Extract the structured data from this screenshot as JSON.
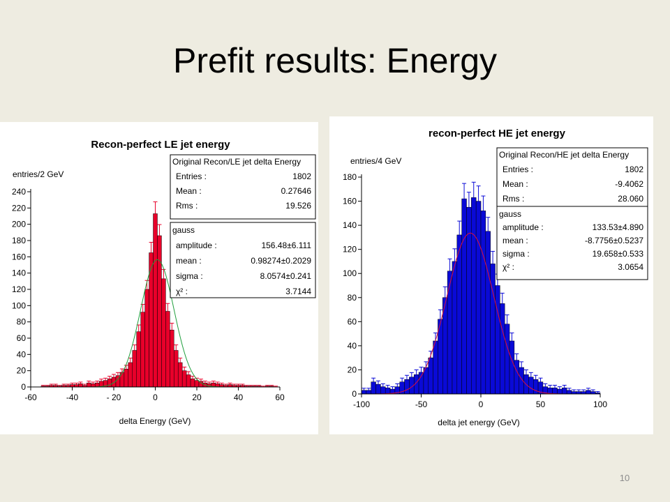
{
  "slide": {
    "title": "Prefit results: Energy",
    "page_number": "10"
  },
  "chart_data": [
    {
      "type": "bar",
      "title": "Recon-perfect LE jet energy",
      "xlabel": "delta Energy (GeV)",
      "ylabel": "entries/2 GeV",
      "xlim": [
        -60,
        60
      ],
      "ylim": [
        0,
        240
      ],
      "xticks": [
        -60,
        -40,
        -20,
        0,
        20,
        40,
        60
      ],
      "xtick_labels": [
        "-60",
        "-40",
        "- 20",
        "0",
        "20",
        "40",
        "60"
      ],
      "yticks": [
        0,
        20,
        40,
        60,
        80,
        100,
        120,
        140,
        160,
        180,
        200,
        220,
        240
      ],
      "bin_width": 2,
      "bar_color": "#e8002a",
      "fit_color": "#1f9e3c",
      "x": [
        -54,
        -52,
        -50,
        -48,
        -46,
        -44,
        -42,
        -40,
        -38,
        -36,
        -34,
        -32,
        -30,
        -28,
        -26,
        -24,
        -22,
        -20,
        -18,
        -16,
        -14,
        -12,
        -10,
        -8,
        -6,
        -4,
        -2,
        0,
        2,
        4,
        6,
        8,
        10,
        12,
        14,
        16,
        18,
        20,
        22,
        24,
        26,
        28,
        30,
        32,
        34,
        36,
        38,
        40,
        42,
        44,
        46,
        48,
        50,
        52,
        54,
        56,
        58
      ],
      "values": [
        1,
        1,
        2,
        2,
        1,
        2,
        2,
        3,
        3,
        4,
        2,
        5,
        4,
        5,
        7,
        8,
        10,
        12,
        14,
        18,
        22,
        30,
        45,
        68,
        92,
        120,
        165,
        213,
        186,
        133,
        93,
        70,
        45,
        30,
        20,
        15,
        10,
        8,
        7,
        5,
        4,
        5,
        4,
        3,
        2,
        3,
        2,
        2,
        2,
        1,
        1,
        1,
        1,
        0,
        1,
        1,
        0
      ],
      "fit": {
        "amplitude": 156.48,
        "mean": 0.98274,
        "sigma": 8.0574
      },
      "stats_box": {
        "title": "Original Recon/LE jet delta Energy",
        "rows": [
          {
            "label": "Entries :",
            "value": "1802"
          },
          {
            "label": "Mean :",
            "value": "0.27646"
          },
          {
            "label": "Rms :",
            "value": "19.526"
          }
        ]
      },
      "fit_box": {
        "title": "gauss",
        "rows": [
          {
            "label": "amplitude :",
            "value": "156.48±6.111"
          },
          {
            "label": "mean :",
            "value": "0.98274±0.2029"
          },
          {
            "label": "sigma :",
            "value": "8.0574±0.241"
          },
          {
            "label": "χ² :",
            "value": "3.7144"
          }
        ]
      }
    },
    {
      "type": "bar",
      "title": "recon-perfect HE jet energy",
      "xlabel": "delta jet energy (GeV)",
      "ylabel": "entries/4 GeV",
      "xlim": [
        -100,
        100
      ],
      "ylim": [
        0,
        180
      ],
      "xticks": [
        -100,
        -50,
        0,
        50,
        100
      ],
      "xtick_labels": [
        "-100",
        "-50",
        "0",
        "50",
        "100"
      ],
      "yticks": [
        0,
        20,
        40,
        60,
        80,
        100,
        120,
        140,
        160,
        180
      ],
      "bin_width": 4,
      "bar_color": "#0a0ad6",
      "fit_color": "#e0103a",
      "x": [
        -98,
        -94,
        -90,
        -86,
        -82,
        -78,
        -74,
        -70,
        -66,
        -62,
        -58,
        -54,
        -50,
        -46,
        -42,
        -38,
        -34,
        -30,
        -26,
        -22,
        -18,
        -14,
        -10,
        -6,
        -2,
        2,
        6,
        10,
        14,
        18,
        22,
        26,
        30,
        34,
        38,
        42,
        46,
        50,
        54,
        58,
        62,
        66,
        70,
        74,
        78,
        82,
        86,
        90,
        94,
        98
      ],
      "values": [
        3,
        3,
        10,
        8,
        6,
        5,
        4,
        6,
        10,
        12,
        14,
        16,
        18,
        22,
        30,
        44,
        62,
        80,
        102,
        110,
        132,
        162,
        155,
        163,
        160,
        152,
        135,
        108,
        90,
        75,
        58,
        44,
        28,
        22,
        16,
        14,
        12,
        10,
        6,
        5,
        5,
        4,
        5,
        3,
        2,
        2,
        2,
        3,
        2,
        1
      ],
      "fit": {
        "amplitude": 133.53,
        "mean": -8.7756,
        "sigma": 19.658
      },
      "stats_box": {
        "title": "Original Recon/HE jet delta Energy",
        "rows": [
          {
            "label": "Entries :",
            "value": "1802"
          },
          {
            "label": "Mean :",
            "value": "-9.4062"
          },
          {
            "label": "Rms :",
            "value": "28.060"
          }
        ]
      },
      "fit_box": {
        "title": "gauss",
        "rows": [
          {
            "label": "amplitude :",
            "value": "133.53±4.890"
          },
          {
            "label": "mean :",
            "value": "-8.7756±0.5237"
          },
          {
            "label": "sigma :",
            "value": "19.658±0.533"
          },
          {
            "label": "χ² :",
            "value": "3.0654"
          }
        ]
      }
    }
  ]
}
